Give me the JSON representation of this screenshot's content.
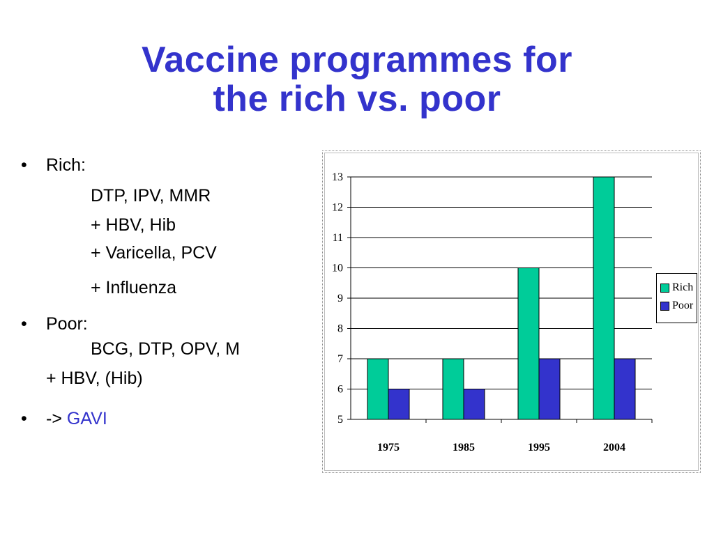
{
  "title": {
    "line1": "Vaccine programmes for",
    "line2": "the rich vs. poor"
  },
  "bullets": {
    "rich": {
      "bullet": "•",
      "label": "Rich:",
      "lines": [
        "DTP, IPV, MMR",
        "+ HBV, Hib",
        "+ Varicella, PCV",
        "+ Influenza"
      ]
    },
    "poor": {
      "bullet": "•",
      "label": "Poor:",
      "lines": [
        "BCG, DTP, OPV, M",
        "+ HBV, (Hib)"
      ]
    },
    "gavi": {
      "bullet": "•",
      "arrow": "->",
      "label": "GAVI"
    }
  },
  "chart_data": {
    "type": "bar",
    "categories": [
      "1975",
      "1985",
      "1995",
      "2004"
    ],
    "series": [
      {
        "name": "Rich",
        "values": [
          7,
          7,
          10,
          13
        ],
        "color": "#00cc99"
      },
      {
        "name": "Poor",
        "values": [
          6,
          6,
          7,
          7
        ],
        "color": "#3333cc"
      }
    ],
    "ylim": [
      5,
      13
    ],
    "yticks": [
      "5",
      "6",
      "7",
      "8",
      "9",
      "10",
      "11",
      "12",
      "13"
    ],
    "grid": true,
    "legend_position": "right"
  }
}
